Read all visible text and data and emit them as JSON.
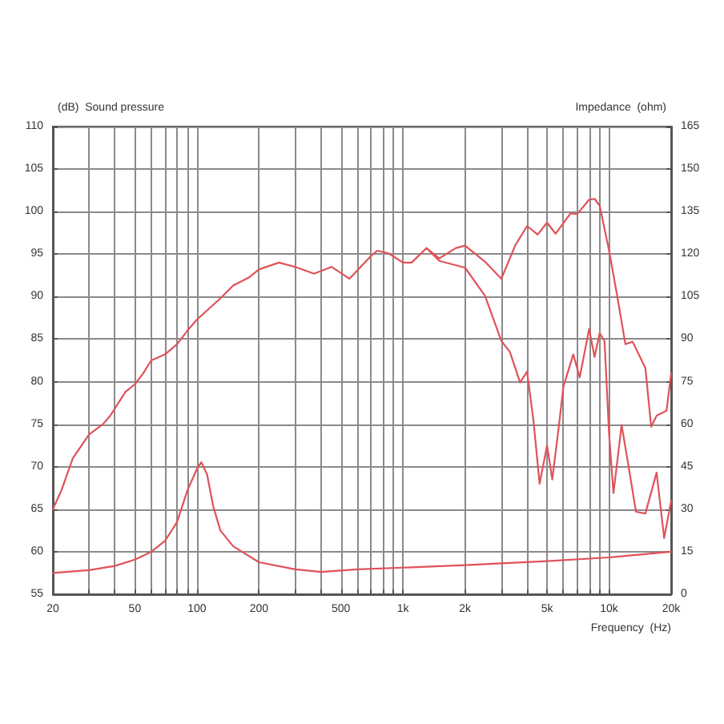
{
  "chart_data": {
    "type": "line",
    "ylabel": "(dB)  Sound pressure",
    "y2label": "Impedance  (ohm)",
    "xlabel": "Frequency  (Hz)",
    "log": "x",
    "grid": true,
    "marker": "none",
    "line_style": "solid",
    "xlim": [
      20,
      20000
    ],
    "xticks": [
      20,
      {
        "value": 30,
        "label": null
      },
      {
        "value": 40,
        "label": null
      },
      50,
      {
        "value": 60,
        "label": null
      },
      {
        "value": 70,
        "label": null
      },
      {
        "value": 80,
        "label": null
      },
      {
        "value": 90,
        "label": null
      },
      100,
      200,
      {
        "value": 300,
        "label": null
      },
      {
        "value": 400,
        "label": null
      },
      500,
      {
        "value": 600,
        "label": null
      },
      {
        "value": 700,
        "label": null
      },
      {
        "value": 800,
        "label": null
      },
      {
        "value": 900,
        "label": null
      },
      {
        "value": 1000,
        "label": "1k"
      },
      {
        "value": 2000,
        "label": "2k"
      },
      {
        "value": 3000,
        "label": null
      },
      {
        "value": 4000,
        "label": null
      },
      {
        "value": 5000,
        "label": "5k"
      },
      {
        "value": 6000,
        "label": null
      },
      {
        "value": 7000,
        "label": null
      },
      {
        "value": 8000,
        "label": null
      },
      {
        "value": 9000,
        "label": null
      },
      {
        "value": 10000,
        "label": "10k"
      },
      {
        "value": 20000,
        "label": "20k"
      }
    ],
    "ylim": [
      55,
      110
    ],
    "yticks": [
      55,
      60,
      65,
      70,
      75,
      80,
      85,
      90,
      95,
      100,
      105,
      110
    ],
    "y2lim": [
      0,
      165
    ],
    "y2ticks": [
      0,
      15,
      30,
      45,
      60,
      75,
      90,
      105,
      120,
      135,
      150,
      165
    ],
    "series": [
      {
        "color": "#e05258",
        "x": [
          20,
          22,
          25,
          30,
          35,
          38,
          45,
          50,
          55,
          60,
          70,
          80,
          90,
          100,
          110,
          130,
          150,
          180,
          200,
          250,
          300,
          370,
          450,
          550,
          700,
          750,
          850,
          1000,
          1100,
          1300,
          1500,
          1800,
          2000,
          2500,
          3000,
          3500,
          4000,
          4500,
          5000,
          5500,
          6500,
          7000,
          8000,
          8500,
          9000,
          10000,
          11000,
          12000,
          13000,
          15000,
          16000,
          17000,
          19000,
          20000
        ],
        "values": [
          65,
          67.2,
          71,
          73.8,
          75,
          76,
          78.8,
          79.7,
          81,
          82.5,
          83.2,
          84.4,
          86,
          87.3,
          88.2,
          89.8,
          91.3,
          92.3,
          93.2,
          94,
          93.5,
          92.7,
          93.5,
          92.1,
          94.8,
          95.4,
          95.1,
          94,
          94,
          95.7,
          94.5,
          95.7,
          96,
          94.1,
          92.1,
          96,
          98.3,
          97.3,
          98.7,
          97.4,
          99.8,
          99.7,
          101.4,
          101.5,
          100.7,
          95.4,
          89.8,
          84.4,
          84.7,
          81.6,
          74.7,
          76,
          76.6,
          81
        ]
      },
      {
        "color": "#e05258",
        "x": [
          1300,
          1500,
          2000,
          2500,
          3000,
          3300,
          3700,
          4000,
          4300,
          4600,
          5000,
          5300,
          5700,
          6000,
          6700,
          7200,
          8000,
          8500,
          9000,
          9500,
          10000,
          10500,
          11500,
          12500,
          13500,
          15000,
          17000,
          18500,
          20000
        ],
        "values": [
          95.7,
          94.2,
          93.4,
          90.1,
          84.8,
          83.5,
          79.9,
          81.2,
          75.3,
          68,
          72.5,
          68.5,
          74.7,
          79.4,
          83.2,
          80.5,
          86.2,
          82.9,
          85.7,
          84.8,
          73.8,
          66.9,
          74.9,
          69.7,
          64.7,
          64.5,
          69.3,
          61.6,
          66
        ]
      },
      {
        "color": "#e05258",
        "axis": "y2",
        "x": [
          20,
          30,
          40,
          50,
          60,
          70,
          80,
          90,
          100,
          105,
          112,
          120,
          130,
          150,
          200,
          300,
          400,
          600,
          1000,
          2000,
          5000,
          10000,
          20000
        ],
        "values": [
          7.5,
          8.5,
          10,
          12.2,
          15,
          18.8,
          25.4,
          36.7,
          44.2,
          46.6,
          42.3,
          31,
          22.5,
          16.9,
          11.3,
          8.8,
          7.9,
          8.8,
          9.4,
          10.3,
          11.7,
          13,
          15
        ]
      }
    ]
  }
}
